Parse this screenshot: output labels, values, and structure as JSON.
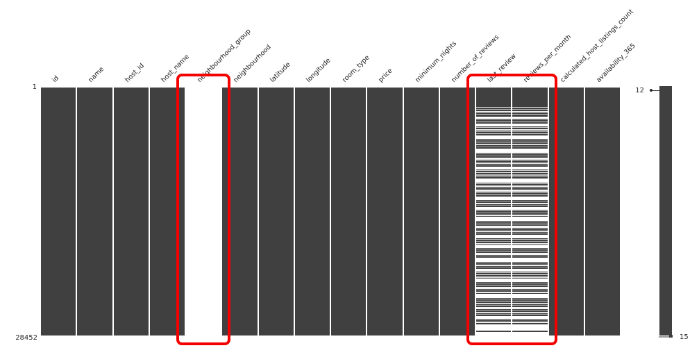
{
  "figure": {
    "background": "#ffffff",
    "bar_color": "#404040",
    "separator_color": "#ffffff",
    "highlight_color": "#f40000",
    "label_color": "#1a1a1a"
  },
  "chart_data": {
    "type": "heatmap",
    "variant": "missingno-missing-values-matrix",
    "title": "",
    "n_columns": 16,
    "columns": [
      {
        "name": "id",
        "missing": "none"
      },
      {
        "name": "name",
        "missing": "none"
      },
      {
        "name": "host_id",
        "missing": "none"
      },
      {
        "name": "host_name",
        "missing": "none"
      },
      {
        "name": "neighbourhood_group",
        "missing": "all"
      },
      {
        "name": "neighbourhood",
        "missing": "none"
      },
      {
        "name": "latitude",
        "missing": "none"
      },
      {
        "name": "longitude",
        "missing": "none"
      },
      {
        "name": "room_type",
        "missing": "none"
      },
      {
        "name": "price",
        "missing": "none"
      },
      {
        "name": "minimum_nights",
        "missing": "none"
      },
      {
        "name": "number_of_reviews",
        "missing": "none"
      },
      {
        "name": "last_review",
        "missing": "partial"
      },
      {
        "name": "reviews_per_month",
        "missing": "partial"
      },
      {
        "name": "calculated_host_listings_count",
        "missing": "none"
      },
      {
        "name": "availability_365",
        "missing": "none"
      }
    ],
    "row_axis": {
      "top": "1",
      "bottom": "28452"
    },
    "sparkline": {
      "top_label": "12",
      "bottom_label": "15"
    },
    "highlight_groups": [
      {
        "columns": [
          "neighbourhood_group"
        ]
      },
      {
        "columns": [
          "last_review",
          "reviews_per_month"
        ]
      }
    ],
    "stripe_reference_height": 357,
    "missing_stripes": [
      [
        28,
        1,
        0.8
      ],
      [
        31,
        1,
        0.6
      ],
      [
        34,
        2,
        0.9
      ],
      [
        38,
        1,
        0.7
      ],
      [
        42,
        3,
        1
      ],
      [
        46,
        1,
        0.6
      ],
      [
        49,
        1,
        0.85
      ],
      [
        52,
        4,
        1
      ],
      [
        57,
        1,
        0.7
      ],
      [
        60,
        2,
        0.9
      ],
      [
        63,
        1,
        0.6
      ],
      [
        66,
        1,
        0.8
      ],
      [
        69,
        5,
        1
      ],
      [
        75,
        1,
        0.7
      ],
      [
        78,
        1,
        0.9
      ],
      [
        81,
        2,
        0.8
      ],
      [
        85,
        1,
        0.6
      ],
      [
        88,
        6,
        1
      ],
      [
        95,
        1,
        0.8
      ],
      [
        98,
        1,
        0.6
      ],
      [
        101,
        3,
        0.95
      ],
      [
        105,
        1,
        0.7
      ],
      [
        108,
        2,
        0.85
      ],
      [
        111,
        1,
        0.6
      ],
      [
        114,
        4,
        1
      ],
      [
        119,
        1,
        0.75
      ],
      [
        122,
        1,
        0.9
      ],
      [
        125,
        2,
        0.7
      ],
      [
        128,
        1,
        0.6
      ],
      [
        131,
        6,
        1
      ],
      [
        138,
        1,
        0.8
      ],
      [
        141,
        2,
        0.9
      ],
      [
        144,
        1,
        0.65
      ],
      [
        147,
        3,
        0.95
      ],
      [
        151,
        1,
        0.7
      ],
      [
        154,
        1,
        0.85
      ],
      [
        157,
        5,
        1
      ],
      [
        163,
        1,
        0.7
      ],
      [
        166,
        2,
        0.9
      ],
      [
        169,
        1,
        0.6
      ],
      [
        172,
        4,
        1
      ],
      [
        177,
        1,
        0.8
      ],
      [
        180,
        1,
        0.65
      ],
      [
        183,
        2,
        0.9
      ],
      [
        186,
        6,
        1
      ],
      [
        193,
        1,
        0.75
      ],
      [
        196,
        1,
        0.9
      ],
      [
        199,
        3,
        0.95
      ],
      [
        203,
        1,
        0.65
      ],
      [
        206,
        2,
        0.85
      ],
      [
        209,
        1,
        0.7
      ],
      [
        212,
        5,
        1
      ],
      [
        218,
        1,
        0.8
      ],
      [
        221,
        1,
        0.6
      ],
      [
        224,
        2,
        0.9
      ],
      [
        227,
        4,
        1
      ],
      [
        232,
        1,
        0.7
      ],
      [
        235,
        1,
        0.85
      ],
      [
        238,
        3,
        0.95
      ],
      [
        242,
        1,
        0.65
      ],
      [
        245,
        6,
        1
      ],
      [
        252,
        1,
        0.8
      ],
      [
        255,
        2,
        0.9
      ],
      [
        258,
        1,
        0.6
      ],
      [
        261,
        4,
        1
      ],
      [
        266,
        1,
        0.75
      ],
      [
        269,
        1,
        0.9
      ],
      [
        272,
        2,
        0.8
      ],
      [
        275,
        5,
        1
      ],
      [
        281,
        1,
        0.7
      ],
      [
        284,
        1,
        0.85
      ],
      [
        287,
        3,
        0.95
      ],
      [
        291,
        1,
        0.6
      ],
      [
        294,
        2,
        0.9
      ],
      [
        297,
        6,
        1
      ],
      [
        304,
        1,
        0.75
      ],
      [
        307,
        1,
        0.9
      ],
      [
        310,
        2,
        0.8
      ],
      [
        313,
        1,
        0.65
      ],
      [
        316,
        3,
        0.95
      ],
      [
        320,
        1,
        0.7
      ],
      [
        323,
        2,
        0.85
      ],
      [
        326,
        1,
        0.6
      ],
      [
        329,
        4,
        1
      ],
      [
        334,
        1,
        0.8
      ],
      [
        337,
        2,
        0.9
      ],
      [
        341,
        9,
        1
      ],
      [
        352,
        5,
        1
      ]
    ]
  }
}
